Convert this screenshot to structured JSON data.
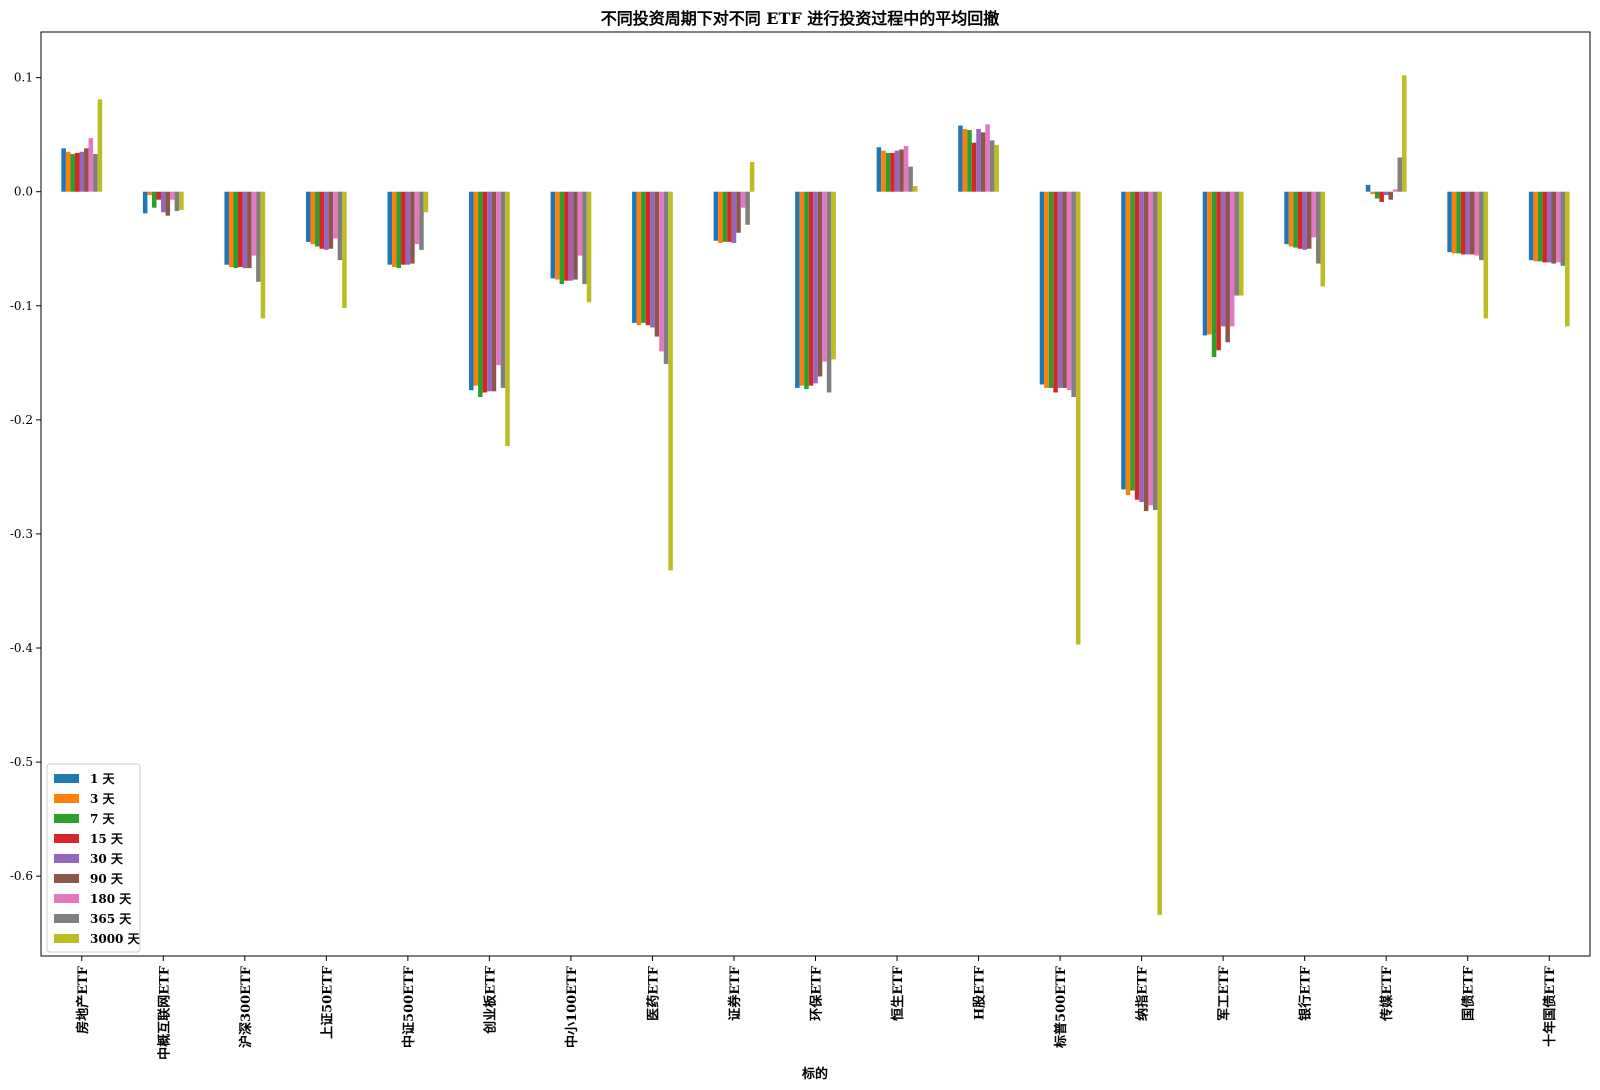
{
  "chart_data": {
    "type": "bar",
    "title": "不同投资周期下对不同 ETF 进行投资过程中的平均回撤",
    "xlabel": "标的",
    "ylabel": "",
    "ylim": [
      -0.67,
      0.14
    ],
    "yticks": [
      0.1,
      0.0,
      -0.1,
      -0.2,
      -0.3,
      -0.4,
      -0.5,
      -0.6
    ],
    "ytick_labels": [
      "0.1",
      "0.0",
      "-0.1",
      "-0.2",
      "-0.3",
      "-0.4",
      "-0.5",
      "-0.6"
    ],
    "grid": false,
    "legend_position": "bottom-left",
    "categories": [
      "房地产ETF",
      "中概互联网ETF",
      "沪深300ETF",
      "上证50ETF",
      "中证500ETF",
      "创业板ETF",
      "中小100ETF",
      "医药ETF",
      "证券ETF",
      "环保ETF",
      "恒生ETF",
      "H股ETF",
      "标普500ETF",
      "纳指ETF",
      "军工ETF",
      "银行ETF",
      "传媒ETF",
      "国债ETF",
      "十年国债ETF"
    ],
    "series": [
      {
        "name": "1 天",
        "color": "#1f77b4",
        "values": [
          0.038,
          -0.019,
          -0.064,
          -0.044,
          -0.064,
          -0.174,
          -0.076,
          -0.115,
          -0.043,
          -0.172,
          0.039,
          0.058,
          -0.169,
          -0.261,
          -0.126,
          -0.046,
          0.006,
          -0.053,
          -0.06
        ]
      },
      {
        "name": "3 天",
        "color": "#ff7f0e",
        "values": [
          0.035,
          -0.003,
          -0.066,
          -0.046,
          -0.066,
          -0.17,
          -0.077,
          -0.117,
          -0.045,
          -0.17,
          0.036,
          0.055,
          -0.172,
          -0.266,
          -0.125,
          -0.048,
          -0.002,
          -0.054,
          -0.061
        ]
      },
      {
        "name": "7 天",
        "color": "#2ca02c",
        "values": [
          0.033,
          -0.014,
          -0.067,
          -0.048,
          -0.067,
          -0.18,
          -0.081,
          -0.115,
          -0.044,
          -0.173,
          0.034,
          0.054,
          -0.172,
          -0.262,
          -0.145,
          -0.049,
          -0.006,
          -0.054,
          -0.061
        ]
      },
      {
        "name": "15 天",
        "color": "#d62728",
        "values": [
          0.034,
          -0.007,
          -0.066,
          -0.05,
          -0.064,
          -0.176,
          -0.078,
          -0.117,
          -0.044,
          -0.17,
          0.034,
          0.043,
          -0.176,
          -0.27,
          -0.139,
          -0.05,
          -0.009,
          -0.055,
          -0.062
        ]
      },
      {
        "name": "30 天",
        "color": "#9467bd",
        "values": [
          0.035,
          -0.018,
          -0.067,
          -0.051,
          -0.064,
          -0.175,
          -0.078,
          -0.119,
          -0.045,
          -0.168,
          0.036,
          0.055,
          -0.172,
          -0.272,
          -0.118,
          -0.051,
          -0.003,
          -0.055,
          -0.062
        ]
      },
      {
        "name": "90 天",
        "color": "#8c564b",
        "values": [
          0.038,
          -0.021,
          -0.067,
          -0.05,
          -0.063,
          -0.175,
          -0.077,
          -0.127,
          -0.036,
          -0.162,
          0.037,
          0.052,
          -0.172,
          -0.28,
          -0.132,
          -0.05,
          -0.007,
          -0.055,
          -0.063
        ]
      },
      {
        "name": "180 天",
        "color": "#e377c2",
        "values": [
          0.047,
          -0.007,
          -0.056,
          -0.041,
          -0.046,
          -0.152,
          -0.056,
          -0.14,
          -0.014,
          -0.149,
          0.04,
          0.059,
          -0.174,
          -0.275,
          -0.118,
          -0.04,
          0.002,
          -0.056,
          -0.062
        ]
      },
      {
        "name": "365 天",
        "color": "#7f7f7f",
        "values": [
          0.033,
          -0.017,
          -0.079,
          -0.06,
          -0.051,
          -0.172,
          -0.081,
          -0.151,
          -0.029,
          -0.176,
          0.022,
          0.045,
          -0.18,
          -0.279,
          -0.091,
          -0.063,
          0.03,
          -0.06,
          -0.065
        ]
      },
      {
        "name": "3000 天",
        "color": "#bcbd22",
        "values": [
          0.081,
          -0.016,
          -0.111,
          -0.102,
          -0.018,
          -0.223,
          -0.097,
          -0.332,
          0.026,
          -0.147,
          0.005,
          0.041,
          -0.397,
          -0.634,
          -0.091,
          -0.083,
          0.102,
          -0.111,
          -0.118
        ]
      }
    ]
  }
}
